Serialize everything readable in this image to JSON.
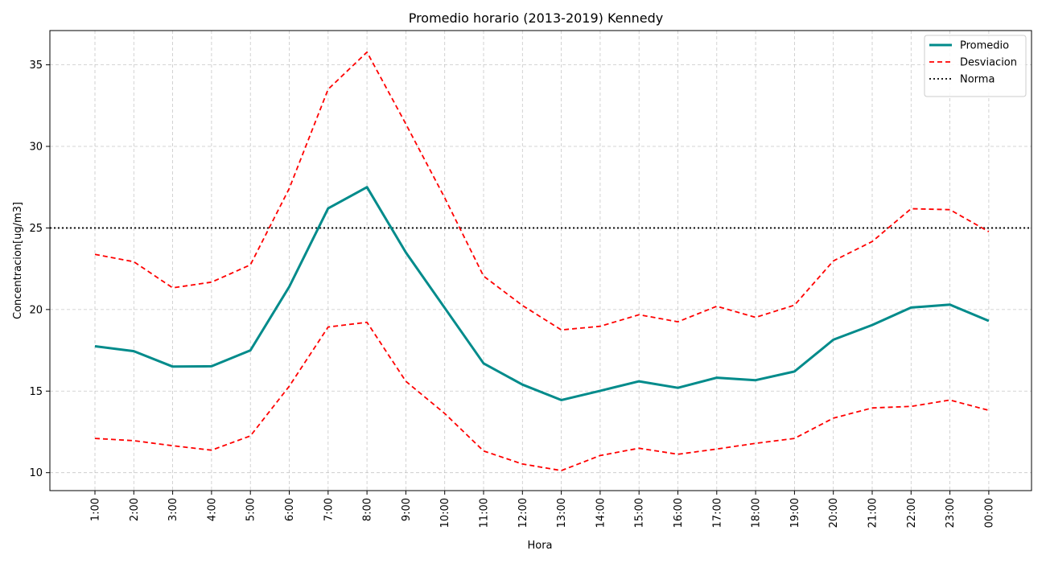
{
  "chart_data": {
    "type": "line",
    "title": "Promedio horario (2013-2019) Kennedy",
    "xlabel": "Hora",
    "ylabel": "Concentracion[ug/m3]",
    "categories": [
      "1:00",
      "2:00",
      "3:00",
      "4:00",
      "5:00",
      "6:00",
      "7:00",
      "8:00",
      "9:00",
      "10:00",
      "11:00",
      "12:00",
      "13:00",
      "14:00",
      "15:00",
      "16:00",
      "17:00",
      "18:00",
      "19:00",
      "20:00",
      "21:00",
      "22:00",
      "23:00",
      "00:00"
    ],
    "yticks": [
      10,
      15,
      20,
      25,
      30,
      35
    ],
    "ylim": [
      8.9,
      37.1
    ],
    "grid": true,
    "legend_position": "top-right",
    "series": [
      {
        "name": "Promedio",
        "style": "solid",
        "color": "#008b8b",
        "values": [
          17.75,
          17.45,
          16.5,
          16.52,
          17.5,
          21.4,
          26.2,
          27.5,
          23.5,
          20.1,
          16.7,
          15.4,
          14.45,
          15.02,
          15.6,
          15.2,
          15.82,
          15.67,
          16.2,
          18.15,
          19.05,
          20.12,
          20.3,
          19.3
        ]
      },
      {
        "name": "Desviacion",
        "style": "dashed",
        "color": "#ff0000",
        "values": [
          23.38,
          22.93,
          21.33,
          21.68,
          22.74,
          27.42,
          33.5,
          35.78,
          31.37,
          26.85,
          22.05,
          20.25,
          18.75,
          18.97,
          19.68,
          19.25,
          20.2,
          19.52,
          20.27,
          22.98,
          24.17,
          26.18,
          26.12,
          24.77
        ]
      },
      {
        "name": "",
        "style": "dashed",
        "color": "#ff0000",
        "values": [
          12.1,
          11.96,
          11.65,
          11.38,
          12.25,
          15.3,
          18.93,
          19.22,
          15.6,
          13.63,
          11.33,
          10.53,
          10.13,
          11.05,
          11.5,
          11.13,
          11.45,
          11.8,
          12.1,
          13.34,
          13.97,
          14.06,
          14.45,
          13.82
        ]
      }
    ],
    "reference_lines": [
      {
        "name": "Norma",
        "style": "dotted",
        "color": "#000000",
        "y": 25
      }
    ]
  }
}
